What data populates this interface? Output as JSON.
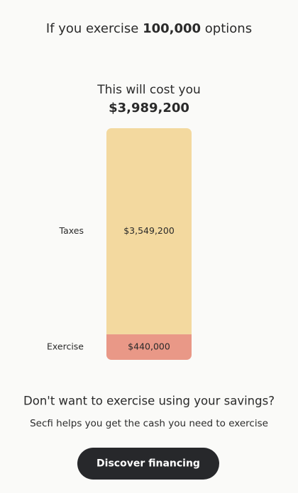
{
  "header": {
    "prefix": "If you exercise",
    "options": "100,000",
    "suffix": "options"
  },
  "cost": {
    "label": "This will cost you",
    "total": "$3,989,200"
  },
  "chart_data": {
    "type": "bar",
    "stacked": true,
    "series": [
      {
        "name": "Exercise",
        "color": "#e99887",
        "values": [
          440000
        ],
        "value_labels": [
          "$440,000"
        ]
      },
      {
        "name": "Taxes",
        "color": "#f3d99f",
        "values": [
          3549200
        ],
        "value_labels": [
          "$3,549,200"
        ]
      }
    ]
  },
  "cta": {
    "question": "Don't want to exercise using your savings?",
    "note": "Secfi helps you get the cash you need to exercise",
    "button": "Discover financing"
  }
}
